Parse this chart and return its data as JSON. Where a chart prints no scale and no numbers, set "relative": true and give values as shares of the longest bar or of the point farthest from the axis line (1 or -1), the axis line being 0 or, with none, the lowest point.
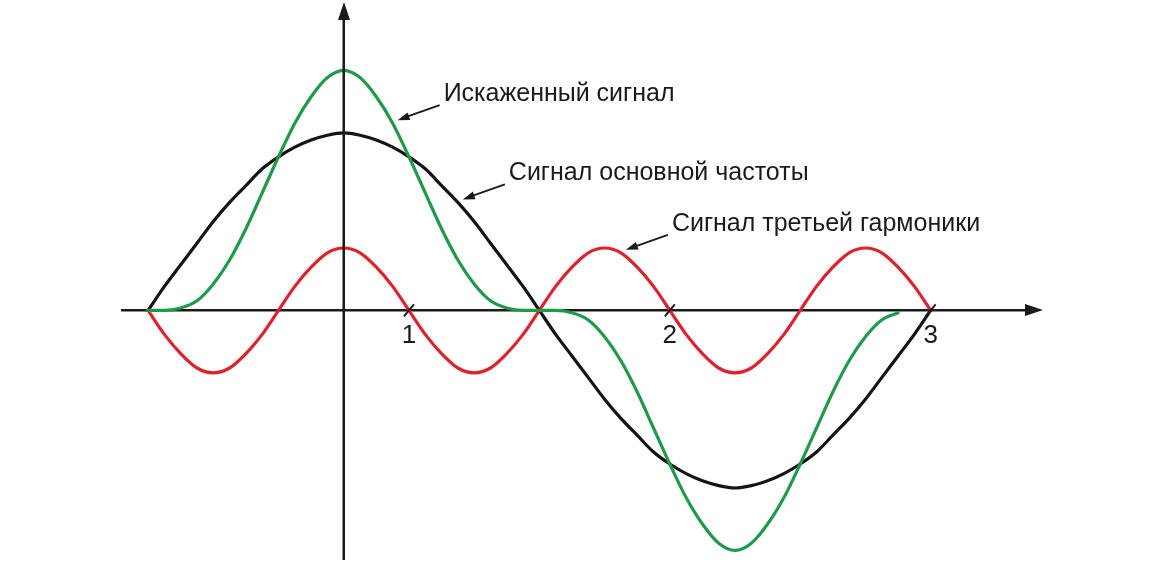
{
  "chart_data": {
    "type": "line",
    "relative": true,
    "legend": false,
    "grid": false,
    "marker": "none",
    "line_style": "solid",
    "xlim": [
      -0.1,
      3.4
    ],
    "xticks": [
      1,
      2,
      3
    ],
    "ref_lines": [
      {
        "axis": "x",
        "value": 0.75,
        "color": "#1a1a1a"
      }
    ],
    "x": [
      0,
      0.0625,
      0.125,
      0.1875,
      0.25,
      0.3125,
      0.375,
      0.4375,
      0.5,
      0.5625,
      0.625,
      0.6875,
      0.75,
      0.8125,
      0.875,
      0.9375,
      1,
      1.0625,
      1.125,
      1.1875,
      1.25,
      1.3125,
      1.375,
      1.4375,
      1.5,
      1.5625,
      1.625,
      1.6875,
      1.75,
      1.8125,
      1.875,
      1.9375,
      2,
      2.0625,
      2.125,
      2.1875,
      2.25,
      2.3125,
      2.375,
      2.4375,
      2.5,
      2.5625,
      2.625,
      2.6875,
      2.75,
      2.8125,
      2.875,
      2.9375,
      3
    ],
    "series": [
      {
        "name": "Искаженный сигнал",
        "color": "#1e9a4a",
        "values": [
          0,
          0,
          0.01,
          0.04,
          0.11,
          0.21,
          0.34,
          0.49,
          0.64,
          0.78,
          0.89,
          0.97,
          1,
          0.97,
          0.89,
          0.78,
          0.64,
          0.49,
          0.34,
          0.21,
          0.11,
          0.04,
          0.01,
          0,
          0,
          0,
          -0.01,
          -0.04,
          -0.11,
          -0.21,
          -0.34,
          -0.49,
          -0.64,
          -0.78,
          -0.89,
          -0.97,
          -1,
          -0.97,
          -0.89,
          -0.78,
          -0.64,
          -0.49,
          -0.34,
          -0.21,
          -0.11,
          -0.04,
          -0.01,
          null,
          null
        ]
      },
      {
        "name": "Сигнал основной частоты",
        "color": "#141414",
        "values": [
          0,
          0.1,
          0.19,
          0.28,
          0.37,
          0.45,
          0.52,
          0.59,
          0.64,
          0.68,
          0.71,
          0.73,
          0.74,
          0.73,
          0.71,
          0.68,
          0.64,
          0.59,
          0.52,
          0.45,
          0.37,
          0.28,
          0.19,
          0.1,
          0,
          -0.1,
          -0.19,
          -0.28,
          -0.37,
          -0.45,
          -0.52,
          -0.59,
          -0.64,
          -0.68,
          -0.71,
          -0.73,
          -0.74,
          -0.73,
          -0.71,
          -0.68,
          -0.64,
          -0.59,
          -0.52,
          -0.45,
          -0.37,
          -0.28,
          -0.19,
          -0.1,
          0
        ]
      },
      {
        "name": "Сигнал третьей гармоники",
        "color": "#e0202a",
        "values": [
          0,
          -0.1,
          -0.18,
          -0.24,
          -0.26,
          -0.24,
          -0.18,
          -0.1,
          0,
          0.1,
          0.18,
          0.24,
          0.26,
          0.24,
          0.18,
          0.1,
          0,
          -0.1,
          -0.18,
          -0.24,
          -0.26,
          -0.24,
          -0.18,
          -0.1,
          0,
          0.1,
          0.18,
          0.24,
          0.26,
          0.24,
          0.18,
          0.1,
          0,
          -0.1,
          -0.18,
          -0.24,
          -0.26,
          -0.24,
          -0.18,
          -0.1,
          0,
          0.1,
          0.18,
          0.24,
          0.26,
          0.24,
          0.18,
          0.1,
          0
        ]
      }
    ]
  }
}
